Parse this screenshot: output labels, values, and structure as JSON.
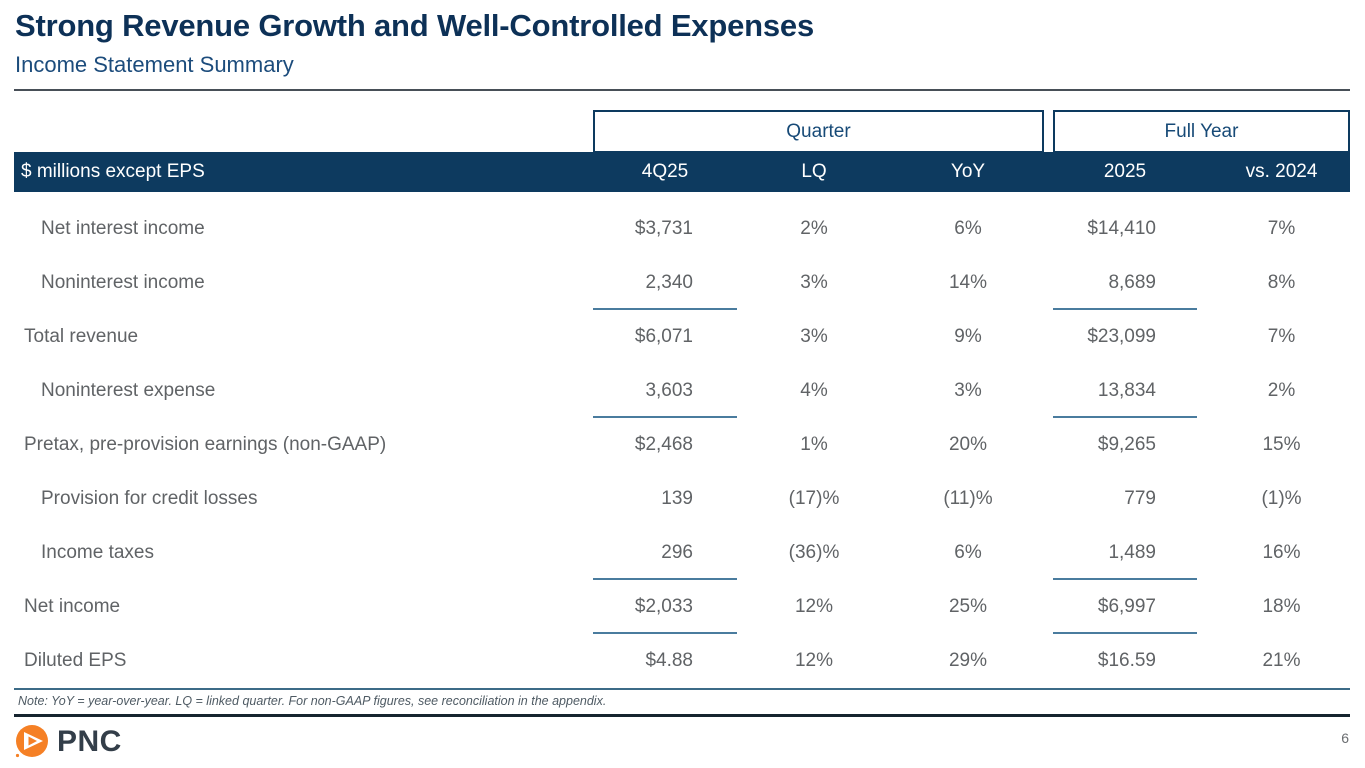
{
  "slide": {
    "title": "Strong Revenue Growth and Well-Controlled Expenses",
    "subtitle": "Income Statement Summary",
    "note": "Note: YoY = year-over-year.  LQ = linked quarter.  For non-GAAP figures, see reconciliation in the appendix.",
    "page_number": "6",
    "logo_text": "PNC"
  },
  "table": {
    "group_headers": [
      {
        "label": "Quarter"
      },
      {
        "label": "Full Year"
      }
    ],
    "header": {
      "label_col": "$ millions except EPS",
      "columns": [
        "4Q25",
        "LQ",
        "YoY",
        "2025",
        "vs. 2024"
      ]
    },
    "rows": [
      {
        "label": "Net interest income",
        "indent": true,
        "underline": false,
        "values": [
          "$3,731",
          "2%",
          "6%",
          "$14,410",
          "7%"
        ]
      },
      {
        "label": "Noninterest income",
        "indent": true,
        "underline": true,
        "values": [
          "2,340",
          "3%",
          "14%",
          "8,689",
          "8%"
        ]
      },
      {
        "label": "Total revenue",
        "indent": false,
        "underline": false,
        "values": [
          "$6,071",
          "3%",
          "9%",
          "$23,099",
          "7%"
        ]
      },
      {
        "label": "Noninterest expense",
        "indent": true,
        "underline": true,
        "values": [
          "3,603",
          "4%",
          "3%",
          "13,834",
          "2%"
        ]
      },
      {
        "label": "Pretax, pre-provision earnings (non-GAAP)",
        "indent": false,
        "underline": false,
        "values": [
          "$2,468",
          "1%",
          "20%",
          "$9,265",
          "15%"
        ]
      },
      {
        "label": "Provision for credit losses",
        "indent": true,
        "underline": false,
        "values": [
          "139",
          "(17)%",
          "(11)%",
          "779",
          "(1)%"
        ]
      },
      {
        "label": "Income taxes",
        "indent": true,
        "underline": true,
        "values": [
          "296",
          "(36)%",
          "6%",
          "1,489",
          "16%"
        ]
      },
      {
        "label": "Net income",
        "indent": false,
        "underline": true,
        "values": [
          "$2,033",
          "12%",
          "25%",
          "$6,997",
          "18%"
        ]
      },
      {
        "label": "Diluted EPS",
        "indent": false,
        "underline": false,
        "values": [
          "$4.88",
          "12%",
          "29%",
          "$16.59",
          "21%"
        ]
      }
    ]
  },
  "colors": {
    "navy_header": "#0d3a5f",
    "title_navy": "#0d3157",
    "subtitle_blue": "#1c4c7c",
    "body_gray": "#606366",
    "underline_blue": "#4a7c9e",
    "logo_orange": "#f58025",
    "logo_word_gray": "#333e49"
  }
}
